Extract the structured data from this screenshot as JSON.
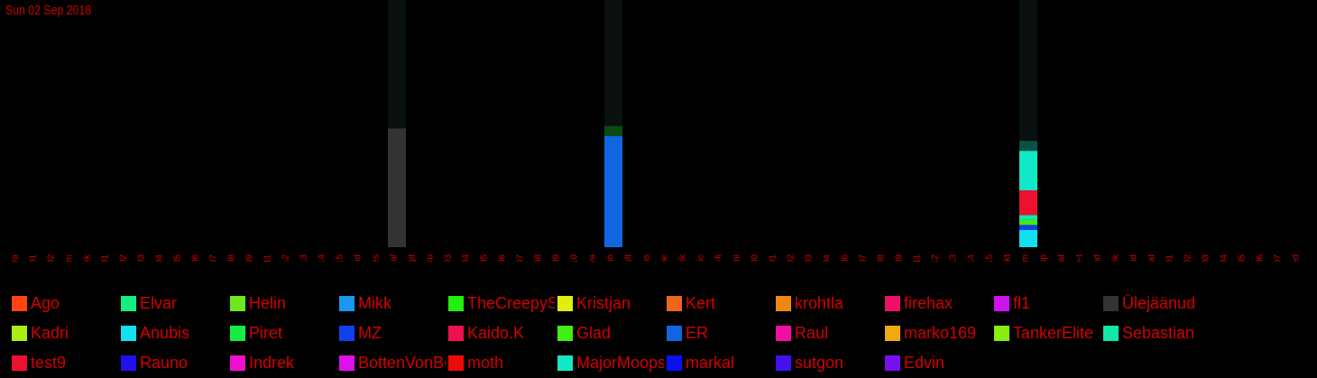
{
  "header": {
    "date": "Sun 02 Sep 2018"
  },
  "colors": {
    "text": "#d40000",
    "background": "#000000",
    "column_bg": "#0a1010"
  },
  "chart_data": {
    "type": "bar",
    "stacked": true,
    "title": "",
    "xlabel": "",
    "ylabel": "",
    "ylim": [
      0,
      100
    ],
    "categories": [
      "codera",
      "dj01",
      "dj02",
      "eksam",
      "ettepanek",
      "ex01",
      "ex02",
      "ex03",
      "ex04",
      "ex05",
      "ex06",
      "ex07",
      "ex08",
      "ex09",
      "ex11",
      "ex12",
      "ex13",
      "ex14",
      "ex15",
      "fond",
      "games",
      "general",
      "git",
      "gomoku",
      "hw03",
      "hw04",
      "hw05",
      "hw06",
      "hw07",
      "hw08",
      "hw09",
      "hw10",
      "java",
      "kaugtöö",
      "konsult",
      "korraldus",
      "meme",
      "mitteniiik",
      "music",
      "olulised-fi",
      "pelmeeni",
      "pr00",
      "pr01",
      "pr02",
      "pr03",
      "pr04",
      "pr06",
      "pr07",
      "pr08",
      "pr09",
      "pr11",
      "pr12",
      "pr13",
      "pr14",
      "pr15",
      "projekt",
      "random",
      "setup",
      "stat",
      "syvapy-t",
      "teadaand",
      "vegan-tik",
      "videod",
      "wat",
      "xp01",
      "xp02",
      "xp03",
      "xp04",
      "xp05",
      "xp06",
      "xp07",
      "ülesanded"
    ],
    "series": [
      {
        "name": "Ago",
        "color": "#ff4410",
        "values": {}
      },
      {
        "name": "Elvar",
        "color": "#12ee80",
        "values": {}
      },
      {
        "name": "Helin",
        "color": "#6ee81e",
        "values": {}
      },
      {
        "name": "Mikk",
        "color": "#1899ee",
        "values": {}
      },
      {
        "name": "TheCreepySh",
        "color": "#22ee11",
        "values": {}
      },
      {
        "name": "Kristjan",
        "color": "#e0ee10",
        "values": {}
      },
      {
        "name": "Kert",
        "color": "#ee6618",
        "values": {}
      },
      {
        "name": "krohtla",
        "color": "#ee8815",
        "values": {}
      },
      {
        "name": "firehax",
        "color": "#ee1068",
        "values": {}
      },
      {
        "name": "fl1",
        "color": "#cc12ee",
        "values": {}
      },
      {
        "name": "Ülejäänud",
        "color": "#333333",
        "values": {
          "general": 48
        }
      },
      {
        "name": "Kadri",
        "color": "#a8ee12",
        "values": {}
      },
      {
        "name": "Anubis",
        "color": "#10e0f0",
        "values": {
          "random": 7
        }
      },
      {
        "name": "Piret",
        "color": "#15ee40",
        "values": {}
      },
      {
        "name": "MZ",
        "color": "#1240ee",
        "values": {
          "random": 2
        }
      },
      {
        "name": "Kaido.K",
        "color": "#ee1050",
        "values": {}
      },
      {
        "name": "Glad",
        "color": "#40ee10",
        "values": {
          "random": 2
        }
      },
      {
        "name": "ER",
        "color": "#1066e0",
        "values": {
          "kaugtöö": 45
        }
      },
      {
        "name": "Raul",
        "color": "#ee10a0",
        "values": {}
      },
      {
        "name": "marko169",
        "color": "#eeaa10",
        "values": {}
      },
      {
        "name": "TankerElite",
        "color": "#88ee10",
        "values": {}
      },
      {
        "name": "Sebastian",
        "color": "#10e8a8",
        "values": {
          "random": 2
        }
      },
      {
        "name": "test9",
        "color": "#ee1030",
        "values": {
          "random": 10
        }
      },
      {
        "name": "Rauno",
        "color": "#2010ee",
        "values": {}
      },
      {
        "name": "Indrek",
        "color": "#ee10cc",
        "values": {}
      },
      {
        "name": "BottenVonBot",
        "color": "#dd10ee",
        "values": {}
      },
      {
        "name": "moth",
        "color": "#ee0a0a",
        "values": {}
      },
      {
        "name": "MajorMoopsy",
        "color": "#10e8c8",
        "values": {
          "random": 16
        }
      },
      {
        "name": "markal",
        "color": "#0a10ee",
        "values": {}
      },
      {
        "name": "sutgon",
        "color": "#4410ee",
        "values": {}
      },
      {
        "name": "Edvin",
        "color": "#7710ee",
        "values": {}
      },
      {
        "name": "",
        "color": "#0a4a14",
        "values": {
          "kaugtöö": 4
        }
      },
      {
        "name": "",
        "color": "#0a5044",
        "values": {
          "random": 4
        }
      }
    ]
  }
}
